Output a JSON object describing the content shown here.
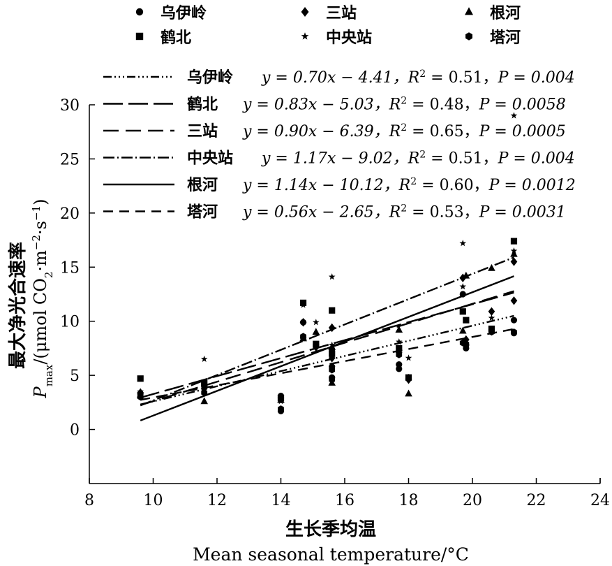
{
  "chart_data": {
    "type": "scatter",
    "xlabel_cn": "生长季均温",
    "xlabel_en": "Mean seasonal temperature/°C",
    "ylabel_cn": "最大净光合速率",
    "ylabel_en_sym": "P",
    "ylabel_en_sub": "max",
    "ylabel_en_unit_a": "/(μmol CO",
    "ylabel_en_unit_b": "2",
    "ylabel_en_unit_c": "·m",
    "ylabel_en_unit_d": "−2",
    "ylabel_en_unit_e": "·s",
    "ylabel_en_unit_f": "−1",
    "ylabel_en_unit_g": ")",
    "xlim": [
      8,
      24
    ],
    "ylim": [
      -5,
      30
    ],
    "xticks": [
      "8",
      "10",
      "12",
      "14",
      "16",
      "18",
      "20",
      "22",
      "24"
    ],
    "yticks": [
      "0",
      "5",
      "10",
      "15",
      "20",
      "25",
      "30"
    ],
    "legend_placement": "top",
    "series": [
      {
        "name": "乌伊岭",
        "marker": "circle",
        "dash": "12,4,2,4,2,4,2,4",
        "fit": {
          "slope": 0.7,
          "intercept": -4.41,
          "xrange": [
            9.6,
            21.3
          ]
        },
        "eq_y": "y = 0.70x − 4.41，",
        "eq_r2": "R",
        "eq_r2_exp": "2",
        "eq_r2_val": " = 0.51，",
        "eq_p": "P = 0.004",
        "points": [
          [
            9.6,
            3.3
          ],
          [
            11.6,
            4.0
          ],
          [
            14.0,
            3.1
          ],
          [
            14.0,
            1.7
          ],
          [
            14.7,
            8.5
          ],
          [
            15.1,
            7.8
          ],
          [
            15.6,
            7.4
          ],
          [
            15.6,
            4.8
          ],
          [
            15.6,
            5.8
          ],
          [
            17.7,
            6.0
          ],
          [
            17.7,
            5.6
          ],
          [
            18.0,
            4.7
          ],
          [
            19.8,
            7.8
          ],
          [
            19.8,
            7.5
          ],
          [
            19.7,
            12.5
          ],
          [
            20.6,
            9.2
          ],
          [
            21.3,
            8.9
          ],
          [
            21.3,
            10.1
          ],
          [
            14.7,
            9.9
          ]
        ]
      },
      {
        "name": "鹤北",
        "marker": "square",
        "dash": "28,8",
        "fit": {
          "slope": 0.83,
          "intercept": -5.03,
          "xrange": [
            9.6,
            21.3
          ]
        },
        "eq_y": "y = 0.83x − 5.03，",
        "eq_r2": "R",
        "eq_r2_exp": "2",
        "eq_r2_val": " = 0.48，",
        "eq_p": "P = 0.0058",
        "points": [
          [
            9.6,
            4.7
          ],
          [
            11.6,
            4.3
          ],
          [
            14.0,
            2.9
          ],
          [
            14.7,
            11.7
          ],
          [
            15.1,
            7.9
          ],
          [
            15.6,
            11.0
          ],
          [
            15.6,
            7.0
          ],
          [
            17.7,
            7.5
          ],
          [
            18.0,
            4.8
          ],
          [
            19.7,
            10.9
          ],
          [
            19.8,
            10.1
          ],
          [
            20.6,
            9.3
          ],
          [
            21.3,
            17.4
          ]
        ]
      },
      {
        "name": "三站",
        "marker": "diamond",
        "dash": "22,10",
        "fit": {
          "slope": 0.9,
          "intercept": -6.39,
          "xrange": [
            9.6,
            21.3
          ]
        },
        "eq_y": "y = 0.90x − 6.39，",
        "eq_r2": "R",
        "eq_r2_exp": "2",
        "eq_r2_val": " = 0.65，",
        "eq_p": "P = 0.0005",
        "points": [
          [
            9.6,
            3.4
          ],
          [
            11.6,
            3.8
          ],
          [
            14.0,
            2.9
          ],
          [
            14.7,
            9.9
          ],
          [
            15.1,
            7.6
          ],
          [
            15.6,
            9.4
          ],
          [
            15.6,
            6.6
          ],
          [
            17.7,
            7.1
          ],
          [
            18.0,
            4.6
          ],
          [
            19.7,
            14.0
          ],
          [
            19.8,
            8.3
          ],
          [
            20.6,
            10.9
          ],
          [
            21.3,
            11.9
          ],
          [
            21.3,
            15.5
          ]
        ]
      },
      {
        "name": "中央站",
        "marker": "star",
        "dash": "16,4,2,4",
        "fit": {
          "slope": 1.17,
          "intercept": -9.02,
          "xrange": [
            9.6,
            21.3
          ]
        },
        "eq_y": "y = 1.17x − 9.02，",
        "eq_r2": "R",
        "eq_r2_exp": "2",
        "eq_r2_val": " = 0.51，",
        "eq_p": "P = 0.004",
        "points": [
          [
            9.6,
            3.5
          ],
          [
            11.6,
            6.5
          ],
          [
            14.0,
            2.6
          ],
          [
            14.7,
            11.5
          ],
          [
            15.1,
            9.9
          ],
          [
            15.6,
            14.1
          ],
          [
            15.6,
            7.8
          ],
          [
            17.7,
            8.1
          ],
          [
            18.0,
            6.6
          ],
          [
            19.7,
            17.2
          ],
          [
            19.7,
            13.2
          ],
          [
            20.6,
            10.3
          ],
          [
            21.3,
            16.5
          ],
          [
            21.3,
            29.0
          ]
        ]
      },
      {
        "name": "根河",
        "marker": "triangle",
        "dash": "",
        "fit": {
          "slope": 1.14,
          "intercept": -10.12,
          "xrange": [
            9.6,
            21.3
          ]
        },
        "eq_y": "y = 1.14x − 10.12，",
        "eq_r2": "R",
        "eq_r2_exp": "2",
        "eq_r2_val": " = 0.60，",
        "eq_p": "P = 0.0012",
        "points": [
          [
            9.6,
            3.2
          ],
          [
            11.6,
            2.6
          ],
          [
            14.0,
            2.7
          ],
          [
            14.7,
            8.4
          ],
          [
            15.1,
            9.0
          ],
          [
            15.6,
            4.3
          ],
          [
            15.6,
            7.6
          ],
          [
            17.7,
            9.2
          ],
          [
            18.0,
            3.3
          ],
          [
            19.7,
            9.1
          ],
          [
            19.8,
            14.2
          ],
          [
            20.6,
            14.9
          ],
          [
            21.3,
            16.2
          ]
        ]
      },
      {
        "name": "塔河",
        "marker": "hexagon",
        "dash": "14,9",
        "fit": {
          "slope": 0.56,
          "intercept": -2.65,
          "xrange": [
            9.6,
            21.3
          ]
        },
        "eq_y": "y = 0.56x − 2.65，",
        "eq_r2": "R",
        "eq_r2_exp": "2",
        "eq_r2_val": " = 0.53，",
        "eq_p": "P = 0.0031",
        "points": [
          [
            9.6,
            3.0
          ],
          [
            11.6,
            3.4
          ],
          [
            14.0,
            1.9
          ],
          [
            14.7,
            8.6
          ],
          [
            15.1,
            7.7
          ],
          [
            15.6,
            5.5
          ],
          [
            15.6,
            4.6
          ],
          [
            17.7,
            6.9
          ],
          [
            18.0,
            4.8
          ],
          [
            19.7,
            8.0
          ],
          [
            19.8,
            7.9
          ],
          [
            20.6,
            9.0
          ],
          [
            21.3,
            9.0
          ]
        ]
      }
    ],
    "legend_order": [
      0,
      2,
      4,
      1,
      3,
      5
    ],
    "fit_legend_order": [
      0,
      1,
      2,
      3,
      4,
      5
    ]
  }
}
